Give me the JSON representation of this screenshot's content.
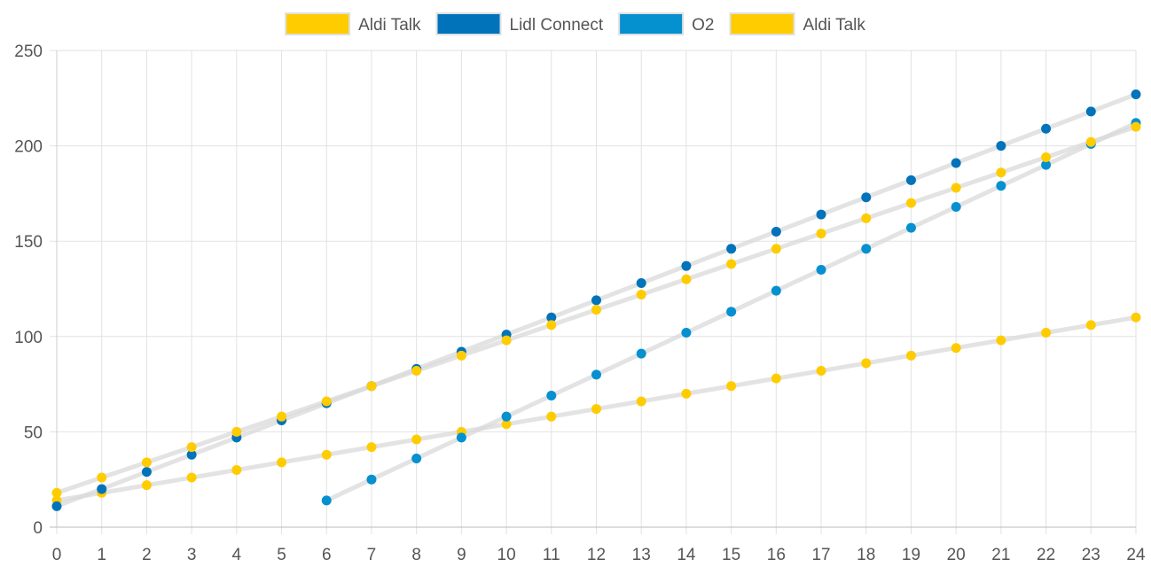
{
  "chart_data": {
    "type": "line",
    "title": "",
    "xlabel": "",
    "ylabel": "",
    "x": [
      0,
      1,
      2,
      3,
      4,
      5,
      6,
      7,
      8,
      9,
      10,
      11,
      12,
      13,
      14,
      15,
      16,
      17,
      18,
      19,
      20,
      21,
      22,
      23,
      24
    ],
    "xlim": [
      0,
      24
    ],
    "ylim": [
      0,
      250
    ],
    "y_ticks": [
      0,
      50,
      100,
      150,
      200,
      250
    ],
    "grid": true,
    "legend_position": "top-center",
    "line_color": "#d9d9d9",
    "series": [
      {
        "name": "Aldi Talk",
        "color": "#ffcc00",
        "values": [
          14,
          18,
          22,
          26,
          30,
          34,
          38,
          42,
          46,
          50,
          54,
          58,
          62,
          66,
          70,
          74,
          78,
          82,
          86,
          90,
          94,
          98,
          102,
          106,
          110
        ]
      },
      {
        "name": "Lidl Connect",
        "color": "#0073ba",
        "values": [
          11,
          20,
          29,
          38,
          47,
          56,
          65,
          74,
          83,
          92,
          101,
          110,
          119,
          128,
          137,
          146,
          155,
          164,
          173,
          182,
          191,
          200,
          209,
          218,
          227
        ]
      },
      {
        "name": "O2",
        "color": "#0590d0",
        "values": [
          null,
          null,
          null,
          null,
          null,
          null,
          14,
          25,
          36,
          47,
          58,
          69,
          80,
          91,
          102,
          113,
          124,
          135,
          146,
          157,
          168,
          179,
          190,
          201,
          212
        ]
      },
      {
        "name": "Aldi Talk",
        "color": "#ffcc00",
        "values": [
          18,
          26,
          34,
          42,
          50,
          58,
          66,
          74,
          82,
          90,
          98,
          106,
          114,
          122,
          130,
          138,
          146,
          154,
          162,
          170,
          178,
          186,
          194,
          202,
          210
        ]
      }
    ]
  }
}
